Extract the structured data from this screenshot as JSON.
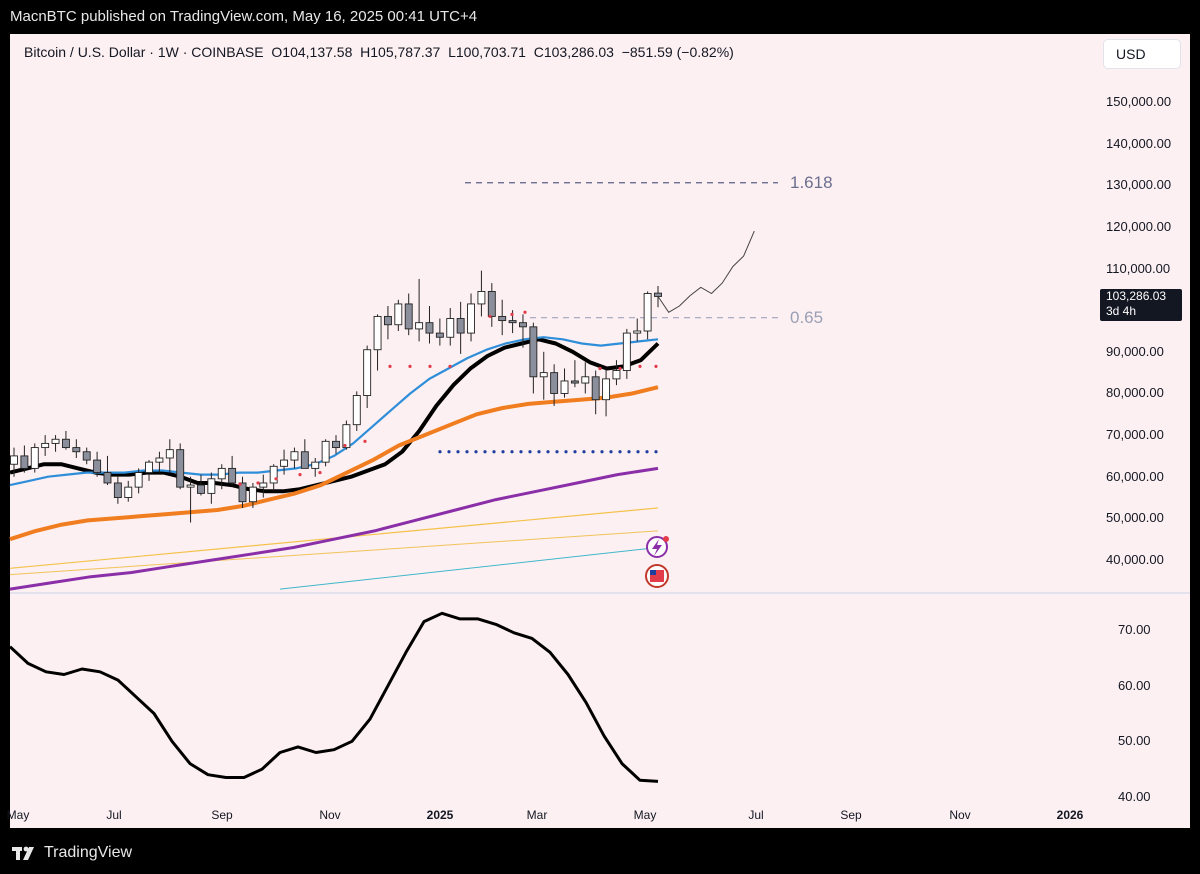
{
  "header": {
    "published": "MacnBTC published on TradingView.com, May 16, 2025 00:41 UTC+4"
  },
  "legend": {
    "symbol": "Bitcoin / U.S. Dollar · 1W · COINBASE",
    "open": "O104,137.58",
    "high": "H105,787.37",
    "low": "L100,703.71",
    "close": "C103,286.03",
    "change": "−851.59 (−0.82%)"
  },
  "currency_button": "USD",
  "price_tag": {
    "price": "103,286.03",
    "countdown": "3d 4h"
  },
  "footer": {
    "brand": "TradingView"
  },
  "colors": {
    "background": "#fdf0f2",
    "ema_black": "#000000",
    "ema_blue": "#2f8ed9",
    "ema_orange": "#f07d1f",
    "sma_purple": "#8a2fa8",
    "fib_line": "#5b5f86"
  },
  "chart_data": [
    {
      "type": "candlestick",
      "title": "",
      "y_axis_side": "right",
      "y_ticks": [
        "150,000.00",
        "140,000.00",
        "130,000.00",
        "120,000.00",
        "110,000.00",
        "100,000.00",
        "90,000.00",
        "80,000.00",
        "70,000.00",
        "60,000.00",
        "50,000.00",
        "40,000.00"
      ],
      "ylim": [
        33000,
        156000
      ],
      "x_ticks": [
        {
          "label": "May",
          "bold": false
        },
        {
          "label": "Jul",
          "bold": false
        },
        {
          "label": "Sep",
          "bold": false
        },
        {
          "label": "Nov",
          "bold": false
        },
        {
          "label": "2025",
          "bold": true
        },
        {
          "label": "Mar",
          "bold": false
        },
        {
          "label": "May",
          "bold": false
        },
        {
          "label": "Jul",
          "bold": false
        },
        {
          "label": "Sep",
          "bold": false
        },
        {
          "label": "Nov",
          "bold": false
        },
        {
          "label": "2026",
          "bold": true
        }
      ],
      "fib_levels": [
        {
          "label": "1.618",
          "value": 130600
        },
        {
          "label": "0.65",
          "value": 98200
        }
      ],
      "candles_ohlc": [
        [
          63000,
          67000,
          60000,
          65000
        ],
        [
          65000,
          67500,
          61000,
          62000
        ],
        [
          62000,
          68000,
          61000,
          67000
        ],
        [
          67000,
          70000,
          65000,
          68000
        ],
        [
          68000,
          70000,
          66000,
          69000
        ],
        [
          69000,
          71000,
          66500,
          67000
        ],
        [
          67000,
          69000,
          64500,
          66000
        ],
        [
          66000,
          67000,
          63000,
          64000
        ],
        [
          64000,
          66000,
          60000,
          61000
        ],
        [
          61000,
          65000,
          58000,
          58500
        ],
        [
          58500,
          60000,
          53500,
          55000
        ],
        [
          55000,
          59000,
          54000,
          57500
        ],
        [
          57500,
          62000,
          56000,
          61000
        ],
        [
          61000,
          64000,
          59000,
          63500
        ],
        [
          63500,
          66000,
          61000,
          64500
        ],
        [
          64500,
          69000,
          61000,
          66500
        ],
        [
          66500,
          68000,
          57000,
          57500
        ],
        [
          57500,
          60000,
          49000,
          58000
        ],
        [
          58000,
          60500,
          55500,
          56000
        ],
        [
          56000,
          61000,
          53500,
          59500
        ],
        [
          59500,
          63000,
          57000,
          62000
        ],
        [
          62000,
          65000,
          58000,
          58500
        ],
        [
          58500,
          60000,
          52500,
          54000
        ],
        [
          54000,
          58500,
          52500,
          57500
        ],
        [
          57500,
          60500,
          55000,
          58500
        ],
        [
          58500,
          63000,
          57000,
          62500
        ],
        [
          62500,
          66500,
          60500,
          64000
        ],
        [
          64000,
          67000,
          62000,
          66000
        ],
        [
          66000,
          69000,
          63000,
          62000
        ],
        [
          62000,
          64500,
          60000,
          63500
        ],
        [
          63500,
          69000,
          62500,
          68500
        ],
        [
          68500,
          70000,
          65500,
          67000
        ],
        [
          67000,
          73500,
          66500,
          72500
        ],
        [
          72500,
          80500,
          71000,
          79500
        ],
        [
          79500,
          91500,
          76500,
          90500
        ],
        [
          90500,
          99000,
          85500,
          98500
        ],
        [
          98500,
          101000,
          93000,
          96500
        ],
        [
          96500,
          102500,
          95000,
          101500
        ],
        [
          101500,
          104000,
          94000,
          95500
        ],
        [
          95500,
          107500,
          92500,
          97000
        ],
        [
          97000,
          101000,
          92000,
          94500
        ],
        [
          94500,
          98000,
          91500,
          93500
        ],
        [
          93500,
          100500,
          91500,
          98000
        ],
        [
          98000,
          102000,
          89500,
          94500
        ],
        [
          94500,
          104000,
          92500,
          101500
        ],
        [
          101500,
          109500,
          98500,
          104500
        ],
        [
          104500,
          106500,
          96000,
          98500
        ],
        [
          98500,
          102500,
          94000,
          97500
        ],
        [
          97500,
          100000,
          94500,
          97000
        ],
        [
          97000,
          99000,
          91000,
          96000
        ],
        [
          96000,
          97000,
          80000,
          84000
        ],
        [
          84000,
          90000,
          78500,
          85000
        ],
        [
          85000,
          87000,
          77000,
          80000
        ],
        [
          80000,
          86000,
          79000,
          83000
        ],
        [
          83000,
          88000,
          81500,
          82500
        ],
        [
          82500,
          87500,
          80000,
          84000
        ],
        [
          84000,
          85500,
          75000,
          78500
        ],
        [
          78500,
          86000,
          74500,
          83500
        ],
        [
          83500,
          88000,
          82000,
          85500
        ],
        [
          85500,
          95500,
          83500,
          94500
        ],
        [
          94500,
          98000,
          92500,
          95000
        ],
        [
          95000,
          104500,
          93000,
          104000
        ],
        [
          104100,
          105800,
          100700,
          103300
        ]
      ],
      "projection_path": [
        [
          103300,
          0
        ],
        [
          99500,
          1
        ],
        [
          101000,
          2
        ],
        [
          103500,
          3
        ],
        [
          105500,
          4
        ],
        [
          104000,
          5
        ],
        [
          106500,
          6
        ],
        [
          110500,
          7
        ],
        [
          113000,
          8
        ],
        [
          119000,
          9
        ]
      ],
      "moving_averages": [
        {
          "id": "black",
          "values": [
            61000,
            62000,
            63000,
            63000,
            62000,
            61000,
            60500,
            60500,
            61000,
            61000,
            60000,
            58500,
            58500,
            58000,
            57000,
            56500,
            56500,
            57000,
            58000,
            59000,
            60000,
            61500,
            63000,
            66000,
            71000,
            77000,
            82000,
            86000,
            89000,
            91000,
            92000,
            93000,
            92000,
            90000,
            87500,
            86000,
            86500,
            88000,
            92000
          ]
        },
        {
          "id": "blue",
          "values": [
            58000,
            59000,
            60000,
            60500,
            61000,
            61000,
            61000,
            61500,
            61500,
            61000,
            60500,
            60500,
            61000,
            61000,
            61500,
            62000,
            63000,
            65000,
            68000,
            72000,
            76000,
            80000,
            83500,
            86000,
            88500,
            90500,
            92000,
            93000,
            93500,
            93000,
            92000,
            91500,
            92000,
            92500,
            93000
          ]
        },
        {
          "id": "orange",
          "values": [
            45000,
            47000,
            48500,
            49500,
            50000,
            50500,
            51000,
            51500,
            52000,
            53000,
            54500,
            56000,
            58000,
            61000,
            64000,
            67500,
            70000,
            72500,
            75000,
            76500,
            77500,
            78000,
            78500,
            79000,
            80000,
            81500
          ]
        },
        {
          "id": "purple",
          "values": [
            33000,
            34500,
            36000,
            37000,
            38500,
            40000,
            41500,
            43000,
            45000,
            47000,
            49500,
            52000,
            54500,
            56500,
            58500,
            60500,
            62000
          ]
        }
      ],
      "ema_line_style": "thick"
    },
    {
      "type": "line",
      "title": "",
      "y_ticks": [
        "70.00",
        "60.00",
        "50.00",
        "40.00"
      ],
      "ylim": [
        40,
        74
      ],
      "series": [
        {
          "values": [
            67,
            64,
            62.5,
            62,
            63,
            62.5,
            61,
            58,
            55,
            50,
            46,
            44,
            43.5,
            43.5,
            45,
            48,
            49,
            48,
            48.5,
            50,
            54,
            60,
            66,
            71.5,
            73,
            72,
            72,
            71,
            69.5,
            68.5,
            66,
            62,
            57,
            51,
            46,
            43,
            42.8
          ]
        }
      ]
    }
  ]
}
